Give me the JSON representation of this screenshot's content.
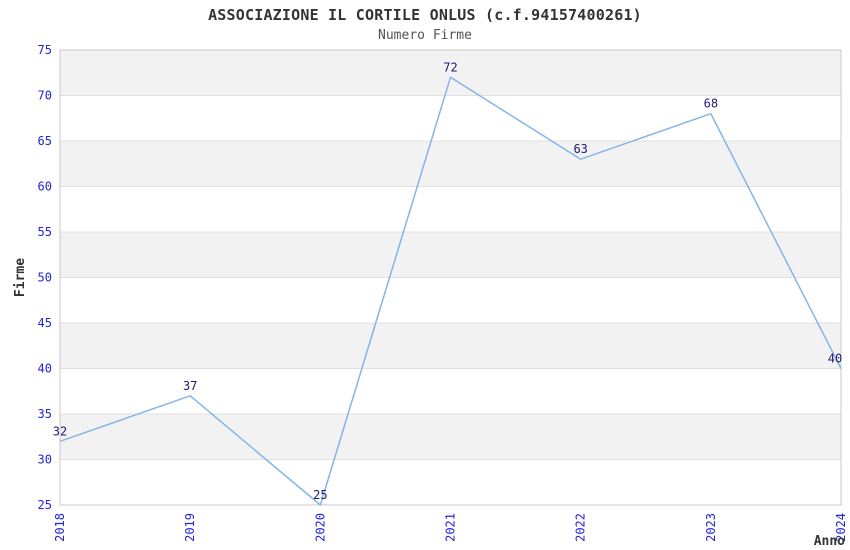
{
  "chart_data": {
    "type": "line",
    "title": "ASSOCIAZIONE IL CORTILE ONLUS (c.f.94157400261)",
    "subtitle": "Numero Firme",
    "xlabel": "Anno",
    "ylabel": "Firme",
    "x": [
      2018,
      2019,
      2020,
      2021,
      2022,
      2023,
      2024
    ],
    "values": [
      32,
      37,
      25,
      72,
      63,
      68,
      40
    ],
    "ylim": [
      25,
      75
    ],
    "ytick_step": 5,
    "yticks": [
      25,
      30,
      35,
      40,
      45,
      50,
      55,
      60,
      65,
      70,
      75
    ],
    "grid": "horizontal-banded",
    "legend": "none",
    "colors": {
      "line": "#85b5e5",
      "tick_label": "#2424d9",
      "data_label": "#1c1c70",
      "axis_title": "#333333",
      "title_color": "#333333",
      "subtitle_color": "#555555",
      "band_fill": "#f2f2f2",
      "gridline": "#e0e0e0",
      "plot_border": "#c9c9c9",
      "background": "#ffffff"
    }
  }
}
